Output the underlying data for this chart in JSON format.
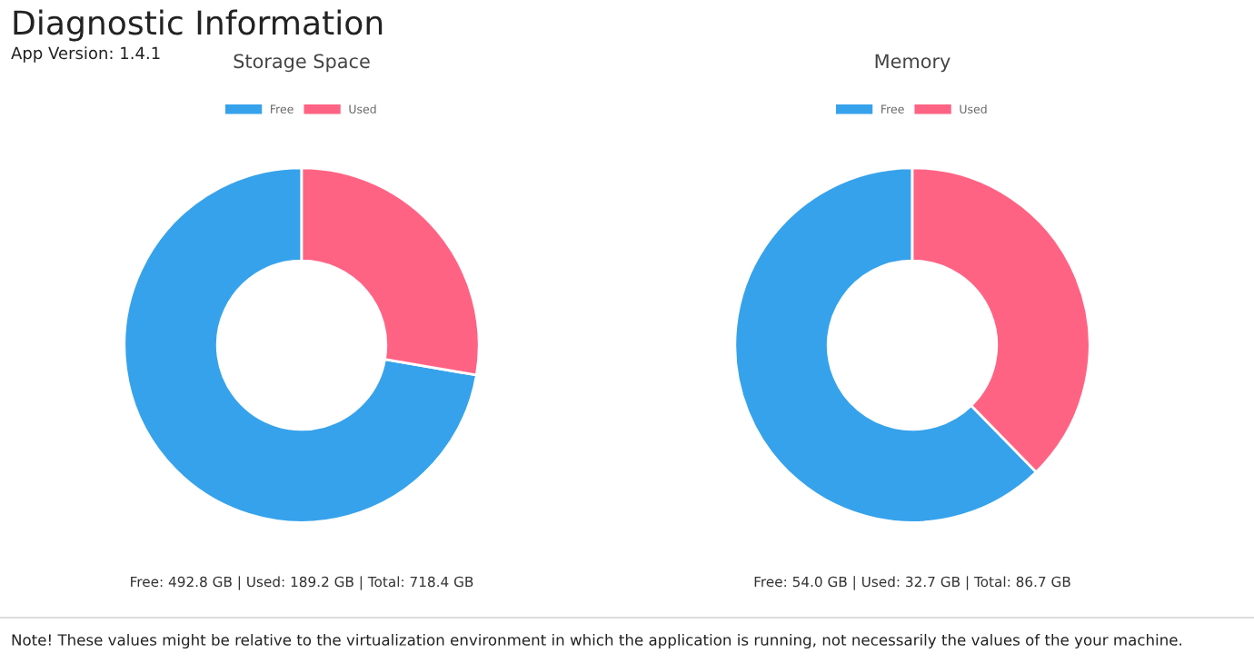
{
  "chart_data": [
    {
      "type": "donut",
      "title": "Storage Space",
      "categories": [
        "Free",
        "Used"
      ],
      "values": [
        72.3,
        27.7
      ],
      "colors": [
        "#36a2eb",
        "#ff6384"
      ],
      "legend": "top",
      "annotations": [
        "Free: 492.8 GB | Used: 189.2 GB | Total: 718.4 GB",
        "Diagnostic Information",
        "App Version: 1.4.1",
        "Note! These values might be relative to the virtualization environment in which the application is running, not necessarily the values of the your machine."
      ]
    },
    {
      "type": "donut",
      "title": "Memory",
      "categories": [
        "Free",
        "Used"
      ],
      "values": [
        62.3,
        37.7
      ],
      "colors": [
        "#36a2eb",
        "#ff6384"
      ],
      "legend": "top",
      "annotations": [
        "Free: 54.0 GB | Used: 32.7 GB | Total: 86.7 GB"
      ]
    }
  ]
}
